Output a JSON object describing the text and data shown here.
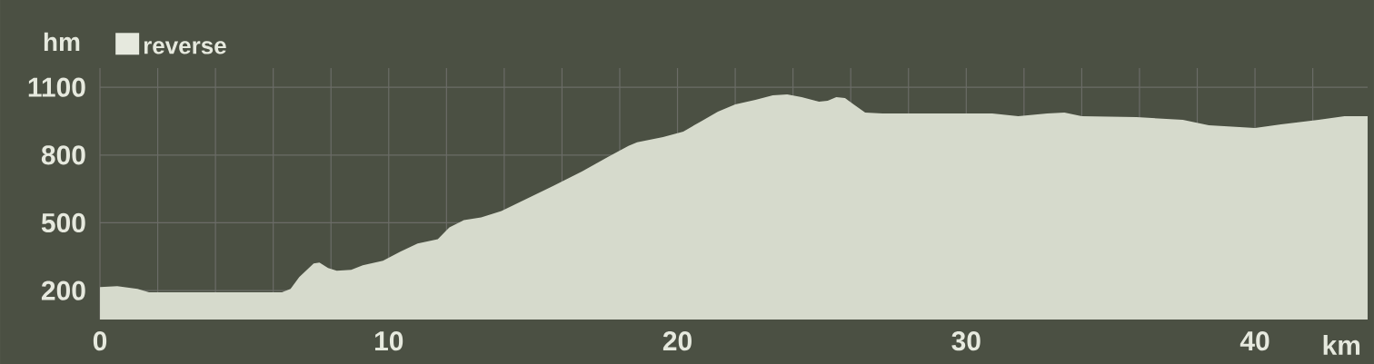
{
  "chart_data": {
    "type": "area",
    "xlabel": "km",
    "ylabel": "hm",
    "x": [
      0,
      0.6,
      1.3,
      1.7,
      2.8,
      6.3,
      6.6,
      6.9,
      7.4,
      7.6,
      7.9,
      8.2,
      8.7,
      9.1,
      9.8,
      10.4,
      11.0,
      11.7,
      12.1,
      12.6,
      13.2,
      13.9,
      14.8,
      15.7,
      16.7,
      17.6,
      18.3,
      18.6,
      19.5,
      20.2,
      20.8,
      21.4,
      22.0,
      22.7,
      23.3,
      23.8,
      24.3,
      24.9,
      25.2,
      25.5,
      25.8,
      26.1,
      26.5,
      27.1,
      30.9,
      31.8,
      32.8,
      33.4,
      34.0,
      35.9,
      37.5,
      38.4,
      40.0,
      40.9,
      42.2,
      43.1,
      43.9
    ],
    "series": [
      {
        "name": "reverse",
        "color": "#d6dacc",
        "values": [
          216,
          220,
          208,
          192,
          192,
          192,
          208,
          260,
          320,
          324,
          300,
          288,
          292,
          312,
          332,
          372,
          408,
          428,
          480,
          512,
          524,
          552,
          608,
          664,
          728,
          792,
          840,
          856,
          880,
          904,
          948,
          992,
          1024,
          1044,
          1064,
          1068,
          1056,
          1036,
          1040,
          1056,
          1052,
          1024,
          988,
          984,
          984,
          972,
          984,
          988,
          972,
          968,
          956,
          932,
          920,
          936,
          956,
          972,
          972
        ]
      }
    ],
    "xlim": [
      0,
      43.9
    ],
    "ylim": [
      72,
      1185
    ],
    "xticks": [
      0,
      {
        "value": 2,
        "label": null
      },
      {
        "value": 4,
        "label": null
      },
      {
        "value": 6,
        "label": null
      },
      {
        "value": 8,
        "label": null
      },
      10,
      {
        "value": 12,
        "label": null
      },
      {
        "value": 14,
        "label": null
      },
      {
        "value": 16,
        "label": null
      },
      {
        "value": 18,
        "label": null
      },
      20,
      {
        "value": 22,
        "label": null
      },
      {
        "value": 24,
        "label": null
      },
      {
        "value": 26,
        "label": null
      },
      {
        "value": 28,
        "label": null
      },
      30,
      {
        "value": 32,
        "label": null
      },
      {
        "value": 34,
        "label": null
      },
      {
        "value": 36,
        "label": null
      },
      {
        "value": 38,
        "label": null
      },
      40,
      {
        "value": 42,
        "label": null
      }
    ],
    "yticks": [
      200,
      500,
      800,
      1100
    ],
    "grid": true,
    "legend": "top left"
  }
}
